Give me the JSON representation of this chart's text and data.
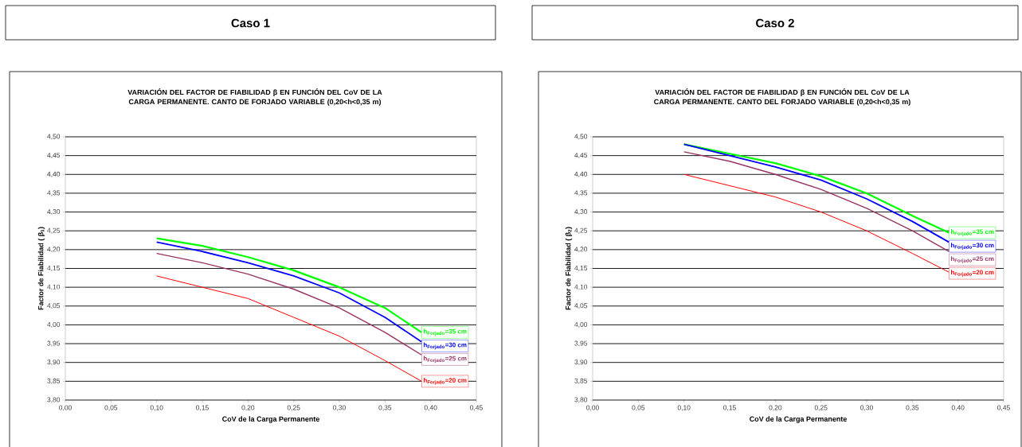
{
  "chart_data": [
    {
      "type": "line",
      "title": "Caso 1",
      "subtitle": "VARIACIÓN DEL FACTOR DE FIABILIDAD β EN FUNCIÓN DEL CoV DE LA CARGA PERMANENTE. CANTO DE FORJADO VARIABLE (0,20<h<0,35 m)",
      "xlabel": "CoV de la Carga Permanente",
      "ylabel": "Factor de Fiabilidad ( β$_{1}$)",
      "x": [
        0.1,
        0.15,
        0.2,
        0.25,
        0.3,
        0.35,
        0.39
      ],
      "series": [
        {
          "name": "h$_{Forjado}$=35 cm",
          "color": "#00ff00",
          "values": [
            4.23,
            4.21,
            4.18,
            4.145,
            4.1,
            4.045,
            3.98
          ]
        },
        {
          "name": "h$_{Forjado}$=30 cm",
          "color": "#0000ff",
          "values": [
            4.22,
            4.195,
            4.165,
            4.13,
            4.085,
            4.02,
            3.955
          ]
        },
        {
          "name": "h$_{Forjado}$=25 cm",
          "color": "#993366",
          "values": [
            4.19,
            4.165,
            4.135,
            4.095,
            4.045,
            3.98,
            3.92
          ]
        },
        {
          "name": "h$_{Forjado}$=20 cm",
          "color": "#ff0000",
          "values": [
            4.13,
            4.1,
            4.07,
            4.02,
            3.97,
            3.905,
            3.85
          ]
        }
      ],
      "xlim": [
        0,
        0.45
      ],
      "ylim": [
        3.8,
        4.5
      ],
      "xticks": [
        {
          "value": 0,
          "label": "0,00"
        },
        {
          "value": 0.05,
          "label": "0,05"
        },
        {
          "value": 0.1,
          "label": "0,10"
        },
        {
          "value": 0.15,
          "label": "0,15"
        },
        {
          "value": 0.2,
          "label": "0,20"
        },
        {
          "value": 0.25,
          "label": "0,25"
        },
        {
          "value": 0.3,
          "label": "0,30"
        },
        {
          "value": 0.35,
          "label": "0,35"
        },
        {
          "value": 0.4,
          "label": "0,40"
        },
        {
          "value": 0.45,
          "label": "0,45"
        }
      ],
      "yticks": [
        {
          "value": 3.8,
          "label": "3,80"
        },
        {
          "value": 3.85,
          "label": "3,85"
        },
        {
          "value": 3.9,
          "label": "3,90"
        },
        {
          "value": 3.95,
          "label": "3,95"
        },
        {
          "value": 4.0,
          "label": "4,00"
        },
        {
          "value": 4.05,
          "label": "4,05"
        },
        {
          "value": 4.1,
          "label": "4,10"
        },
        {
          "value": 4.15,
          "label": "4,15"
        },
        {
          "value": 4.2,
          "label": "4,20"
        },
        {
          "value": 4.25,
          "label": "4,25"
        },
        {
          "value": 4.3,
          "label": "4,30"
        },
        {
          "value": 4.35,
          "label": "4,35"
        },
        {
          "value": 4.4,
          "label": "4,40"
        },
        {
          "value": 4.45,
          "label": "4,45"
        },
        {
          "value": 4.5,
          "label": "4,50"
        }
      ],
      "grid": "y",
      "legend": false
    },
    {
      "type": "line",
      "title": "Caso 2",
      "subtitle": "VARIACIÓN DEL FACTOR DE FIABILIDAD β EN FUNCIÓN DEL CoV DE LA CARGA PERMANENTE. CANTO DEL FORJADO VARIABLE (0,20<h<0,35 m)",
      "xlabel": "CoV de la Carga Permanente",
      "ylabel": "Factor de Fiabilidad ( β$_{2}$)",
      "x": [
        0.1,
        0.15,
        0.2,
        0.25,
        0.3,
        0.35,
        0.39
      ],
      "series": [
        {
          "name": "h$_{Forjado}$=35 cm",
          "color": "#00ff00",
          "values": [
            4.48,
            4.455,
            4.43,
            4.395,
            4.35,
            4.29,
            4.245
          ]
        },
        {
          "name": "h$_{Forjado}$=30 cm",
          "color": "#0000ff",
          "values": [
            4.48,
            4.45,
            4.42,
            4.385,
            4.335,
            4.275,
            4.22
          ]
        },
        {
          "name": "h$_{Forjado}$=25 cm",
          "color": "#993366",
          "values": [
            4.46,
            4.435,
            4.4,
            4.36,
            4.31,
            4.25,
            4.195
          ]
        },
        {
          "name": "h$_{Forjado}$=20 cm",
          "color": "#ff0000",
          "values": [
            4.4,
            4.37,
            4.34,
            4.3,
            4.25,
            4.19,
            4.14
          ]
        }
      ],
      "xlim": [
        0,
        0.45
      ],
      "ylim": [
        3.8,
        4.5
      ],
      "xticks": [
        {
          "value": 0,
          "label": "0,00"
        },
        {
          "value": 0.05,
          "label": "0,05"
        },
        {
          "value": 0.1,
          "label": "0,10"
        },
        {
          "value": 0.15,
          "label": "0,15"
        },
        {
          "value": 0.2,
          "label": "0,20"
        },
        {
          "value": 0.25,
          "label": "0,25"
        },
        {
          "value": 0.3,
          "label": "0,30"
        },
        {
          "value": 0.35,
          "label": "0,35"
        },
        {
          "value": 0.4,
          "label": "0,40"
        },
        {
          "value": 0.45,
          "label": "0,45"
        }
      ],
      "yticks": [
        {
          "value": 3.8,
          "label": "3,80"
        },
        {
          "value": 3.85,
          "label": "3,85"
        },
        {
          "value": 3.9,
          "label": "3,90"
        },
        {
          "value": 3.95,
          "label": "3,95"
        },
        {
          "value": 4.0,
          "label": "4,00"
        },
        {
          "value": 4.05,
          "label": "4,05"
        },
        {
          "value": 4.1,
          "label": "4,10"
        },
        {
          "value": 4.15,
          "label": "4,15"
        },
        {
          "value": 4.2,
          "label": "4,20"
        },
        {
          "value": 4.25,
          "label": "4,25"
        },
        {
          "value": 4.3,
          "label": "4,30"
        },
        {
          "value": 4.35,
          "label": "4,35"
        },
        {
          "value": 4.4,
          "label": "4,40"
        },
        {
          "value": 4.45,
          "label": "4,45"
        },
        {
          "value": 4.5,
          "label": "4,50"
        }
      ],
      "grid": "y",
      "legend": false
    }
  ]
}
